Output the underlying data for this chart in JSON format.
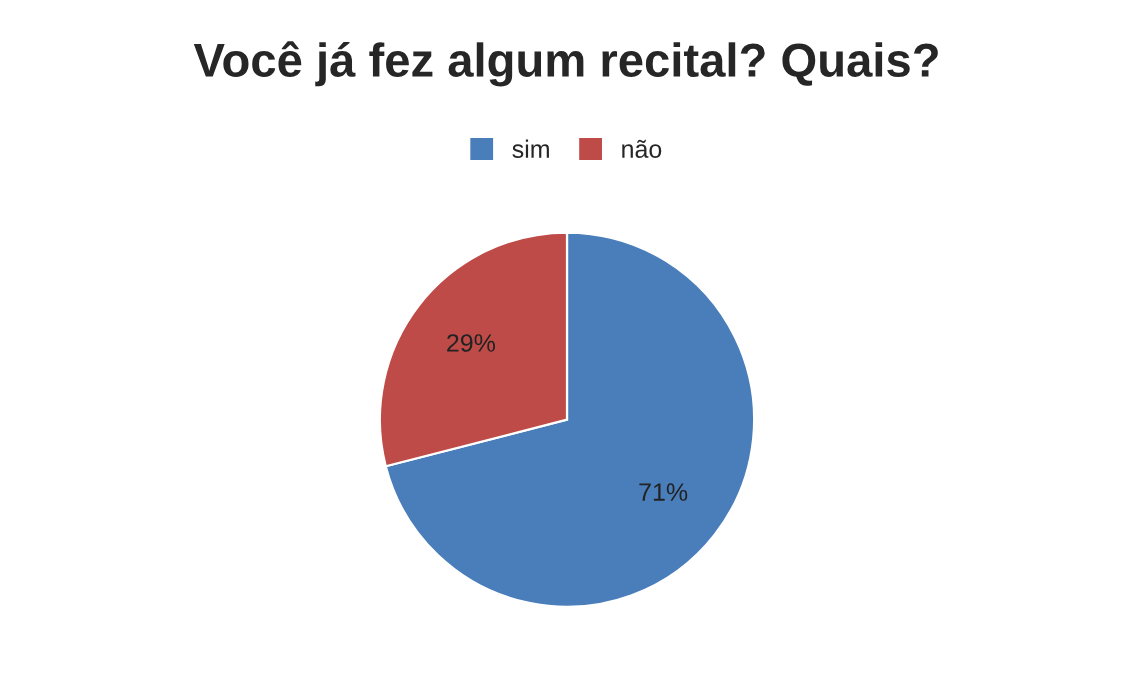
{
  "chart_data": {
    "type": "pie",
    "title": "Você já fez algum recital? Quais?",
    "categories": [
      "sim",
      "não"
    ],
    "values": [
      71,
      29
    ],
    "colors": [
      "#4a7ebb",
      "#be4b48"
    ],
    "value_labels": [
      "71%",
      "29%"
    ],
    "legend": "top"
  }
}
